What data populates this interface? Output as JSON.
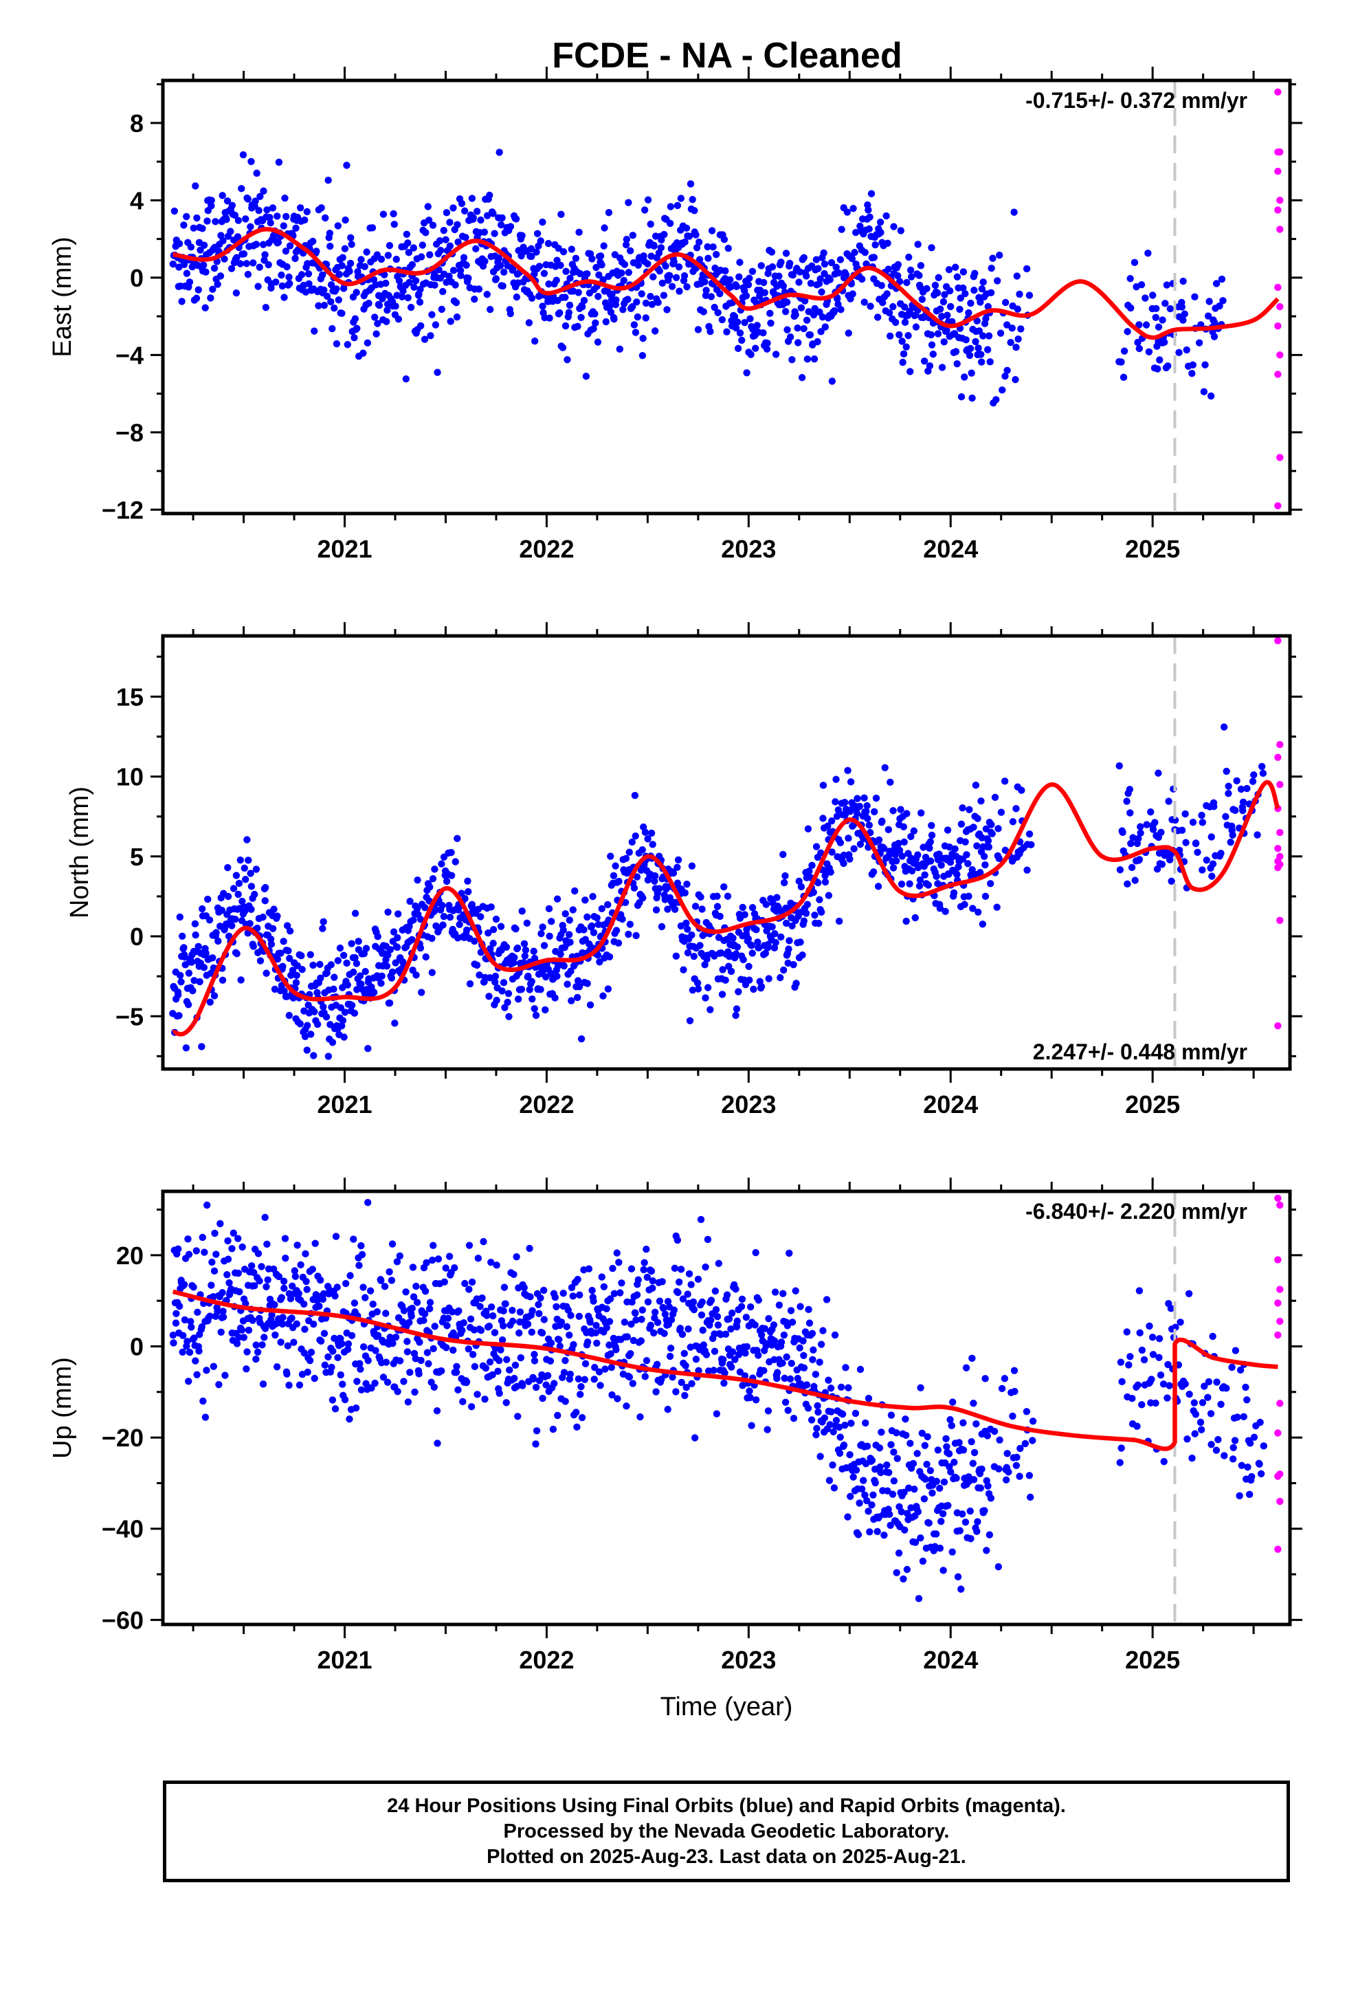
{
  "title": "FCDE  - NA - Cleaned",
  "colors": {
    "final_orbits": "#0000ff",
    "rapid_orbits": "#ff00ff",
    "model": "#ff0000",
    "break_line": "#c8c8c8"
  },
  "chart_data": [
    {
      "type": "scatter",
      "ylabel": "East (mm)",
      "xlabel": "",
      "xlim": [
        2020.1,
        2025.68
      ],
      "ylim": [
        -12.2,
        10.2
      ],
      "yticks": [
        8,
        4,
        0,
        -4,
        -8,
        -12
      ],
      "xticks": [
        2021,
        2022,
        2023,
        2024,
        2025
      ],
      "break_epoch": 2025.11,
      "rate_label": "-0.715+/- 0.372 mm/yr",
      "rate_label_position": "top-right",
      "model_curve": {
        "x": [
          2020.15,
          2020.35,
          2020.6,
          2020.8,
          2021.0,
          2021.2,
          2021.4,
          2021.65,
          2021.9,
          2022.0,
          2022.2,
          2022.4,
          2022.65,
          2022.9,
          2023.0,
          2023.2,
          2023.4,
          2023.6,
          2023.85,
          2024.0,
          2024.2,
          2024.4,
          2024.65,
          2024.9,
          2025.0,
          2025.11,
          2025.3,
          2025.5,
          2025.62
        ],
        "y": [
          1.2,
          1.0,
          2.5,
          1.5,
          -0.3,
          0.4,
          0.3,
          1.9,
          0.2,
          -0.8,
          -0.2,
          -0.5,
          1.2,
          -0.8,
          -1.6,
          -0.9,
          -1.0,
          0.5,
          -1.5,
          -2.5,
          -1.7,
          -1.9,
          -0.2,
          -2.5,
          -3.1,
          -2.7,
          -2.6,
          -2.2,
          -1.1
        ]
      },
      "final_orbit_series": {
        "trend_x": [
          2020.15,
          2020.6,
          2021.0,
          2021.5,
          2021.7,
          2022.0,
          2022.5,
          2022.7,
          2023.0,
          2023.4,
          2023.6,
          2023.8,
          2024.0,
          2024.4,
          2024.85,
          2025.11,
          2025.55
        ],
        "trend_y": [
          1.2,
          2.4,
          -0.3,
          0.5,
          1.8,
          -0.7,
          -0.3,
          1.1,
          -1.6,
          -1.0,
          1.5,
          -1.3,
          -2.4,
          -2.2,
          -2.6,
          -2.8,
          -2.2
        ],
        "spread": 1.6,
        "gaps": [
          [
            2024.42,
            2024.83
          ],
          [
            2025.35,
            2025.55
          ]
        ]
      },
      "rapid_orbit_points": {
        "x": [
          2025.62,
          2025.62,
          2025.63,
          2025.62,
          2025.63,
          2025.62,
          2025.63,
          2025.62,
          2025.63,
          2025.62,
          2025.63,
          2025.62,
          2025.63,
          2025.62
        ],
        "y": [
          9.6,
          6.5,
          6.5,
          5.5,
          4.0,
          3.5,
          2.5,
          -0.5,
          -1.5,
          -2.5,
          -4.0,
          -5.0,
          -9.3,
          -11.8
        ]
      }
    },
    {
      "type": "scatter",
      "ylabel": "North (mm)",
      "xlabel": "",
      "xlim": [
        2020.1,
        2025.68
      ],
      "ylim": [
        -8.3,
        18.8
      ],
      "yticks": [
        15,
        10,
        5,
        0,
        -5
      ],
      "xticks": [
        2021,
        2022,
        2023,
        2024,
        2025
      ],
      "break_epoch": 2025.11,
      "rate_label": "2.247+/- 0.448 mm/yr",
      "rate_label_position": "bottom-right",
      "model_curve": {
        "x": [
          2020.15,
          2020.25,
          2020.5,
          2020.75,
          2021.0,
          2021.25,
          2021.5,
          2021.75,
          2022.0,
          2022.25,
          2022.5,
          2022.75,
          2023.0,
          2023.25,
          2023.5,
          2023.75,
          2024.0,
          2024.25,
          2024.5,
          2024.75,
          2025.0,
          2025.11,
          2025.2,
          2025.35,
          2025.55,
          2025.62
        ],
        "y": [
          -6.0,
          -5.5,
          0.5,
          -3.5,
          -3.8,
          -3.2,
          3.0,
          -1.8,
          -1.5,
          -0.8,
          5.0,
          0.6,
          0.8,
          2.0,
          7.3,
          2.8,
          3.2,
          4.5,
          9.5,
          5.0,
          5.5,
          5.3,
          3.0,
          4.0,
          9.5,
          8.0
        ]
      },
      "final_orbit_series": {
        "trend_x": [
          2020.15,
          2020.25,
          2020.5,
          2020.75,
          2021.0,
          2021.25,
          2021.5,
          2021.75,
          2022.0,
          2022.25,
          2022.5,
          2022.75,
          2023.0,
          2023.25,
          2023.5,
          2023.75,
          2024.0,
          2024.25,
          2024.4,
          2024.85,
          2025.0,
          2025.11,
          2025.3,
          2025.55
        ],
        "trend_y": [
          -2.5,
          -2.0,
          2.5,
          -3.5,
          -3.5,
          -2.0,
          3.0,
          -2.0,
          -2.0,
          -1.0,
          5.0,
          -0.5,
          -0.5,
          1.5,
          8.0,
          5.0,
          4.0,
          6.0,
          7.0,
          6.0,
          6.0,
          5.0,
          6.5,
          9.0
        ],
        "spread": 1.7,
        "gaps": [
          [
            2024.42,
            2024.83
          ]
        ]
      },
      "rapid_orbit_points": {
        "x": [
          2025.62,
          2025.63,
          2025.62,
          2025.63,
          2025.62,
          2025.63,
          2025.62,
          2025.63,
          2025.62,
          2025.63,
          2025.62,
          2025.63,
          2025.62
        ],
        "y": [
          18.5,
          12.0,
          11.2,
          9.5,
          8.0,
          6.5,
          5.5,
          5.0,
          4.7,
          4.5,
          4.3,
          1.0,
          -5.6
        ]
      }
    },
    {
      "type": "scatter",
      "ylabel": "Up (mm)",
      "xlabel": "Time (year)",
      "xlim": [
        2020.1,
        2025.68
      ],
      "ylim": [
        -61,
        34
      ],
      "yticks": [
        20,
        0,
        -20,
        -40,
        -60
      ],
      "xticks": [
        2021,
        2022,
        2023,
        2024,
        2025
      ],
      "break_epoch": 2025.11,
      "rate_label": "-6.840+/- 2.220 mm/yr",
      "rate_label_position": "top-right",
      "model_curve": {
        "x": [
          2020.15,
          2020.5,
          2021.0,
          2021.5,
          2022.0,
          2022.5,
          2023.0,
          2023.5,
          2023.8,
          2024.0,
          2024.3,
          2024.6,
          2024.9,
          2025.11,
          2025.11,
          2025.3,
          2025.5,
          2025.62
        ],
        "y": [
          12.0,
          8.5,
          6.5,
          1.5,
          -0.5,
          -5.0,
          -7.5,
          -12.0,
          -13.5,
          -13.5,
          -17.5,
          -19.5,
          -20.5,
          -21.0,
          0.5,
          -2.5,
          -4.0,
          -4.5
        ]
      },
      "final_orbit_series": {
        "trend_x": [
          2020.15,
          2020.6,
          2021.0,
          2021.5,
          2022.0,
          2022.5,
          2022.8,
          2023.0,
          2023.3,
          2023.6,
          2023.9,
          2024.1,
          2024.35,
          2024.85,
          2025.0,
          2025.11,
          2025.3,
          2025.55
        ],
        "trend_y": [
          9,
          11,
          3,
          5,
          0,
          5,
          4,
          2,
          -5,
          -28,
          -33,
          -30,
          -20,
          -10,
          -6,
          -5,
          -14,
          -25
        ],
        "spread": 8.5,
        "gaps": [
          [
            2024.42,
            2024.83
          ]
        ]
      },
      "rapid_orbit_points": {
        "x": [
          2025.62,
          2025.63,
          2025.62,
          2025.63,
          2025.62,
          2025.63,
          2025.62,
          2025.63,
          2025.62,
          2025.63,
          2025.62,
          2025.63,
          2025.62
        ],
        "y": [
          32.5,
          31.0,
          19.0,
          12.5,
          9.5,
          5.5,
          2.5,
          -12.5,
          -19.0,
          -28.0,
          -28.5,
          -34.0,
          -44.5
        ]
      }
    }
  ],
  "footer": {
    "line1": "24 Hour Positions Using Final Orbits (blue) and Rapid Orbits (magenta).",
    "line2": "Processed by the Nevada Geodetic Laboratory.",
    "line3": "Plotted on 2025-Aug-23. Last data on 2025-Aug-21."
  }
}
